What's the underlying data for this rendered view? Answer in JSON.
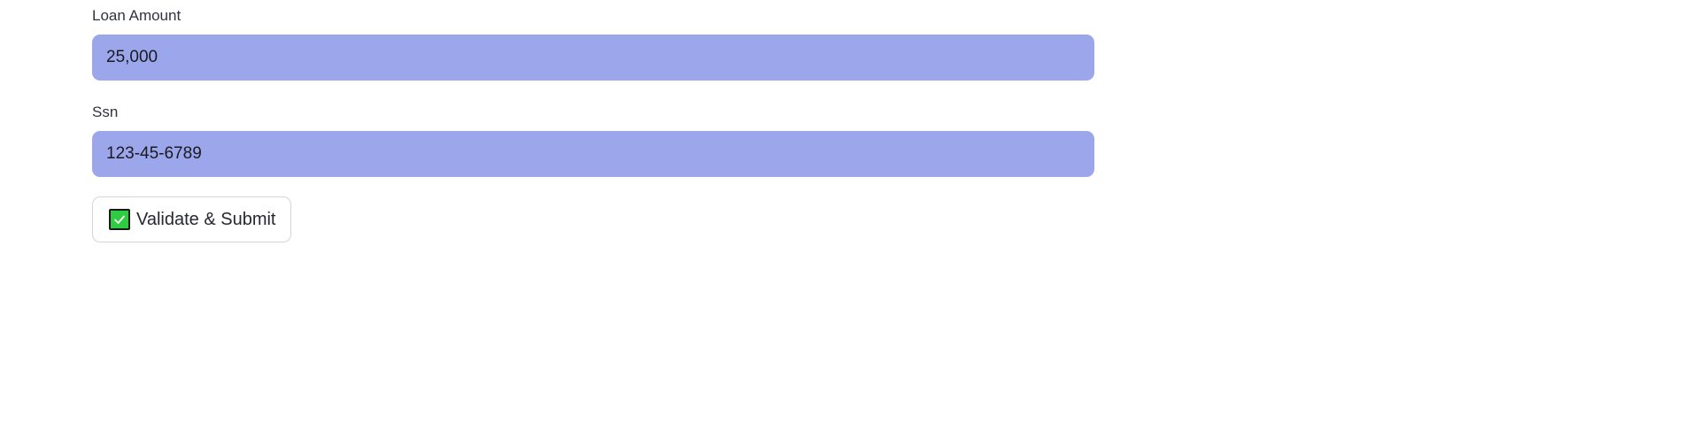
{
  "form": {
    "loan_amount": {
      "label": "Loan Amount",
      "value": "25,000"
    },
    "ssn": {
      "label": "Ssn",
      "value": "123-45-6789"
    },
    "submit": {
      "label": "Validate & Submit",
      "icon": "check-box-icon"
    }
  },
  "colors": {
    "input_background": "#9ca6ea",
    "check_icon_fill": "#2ecc40"
  }
}
